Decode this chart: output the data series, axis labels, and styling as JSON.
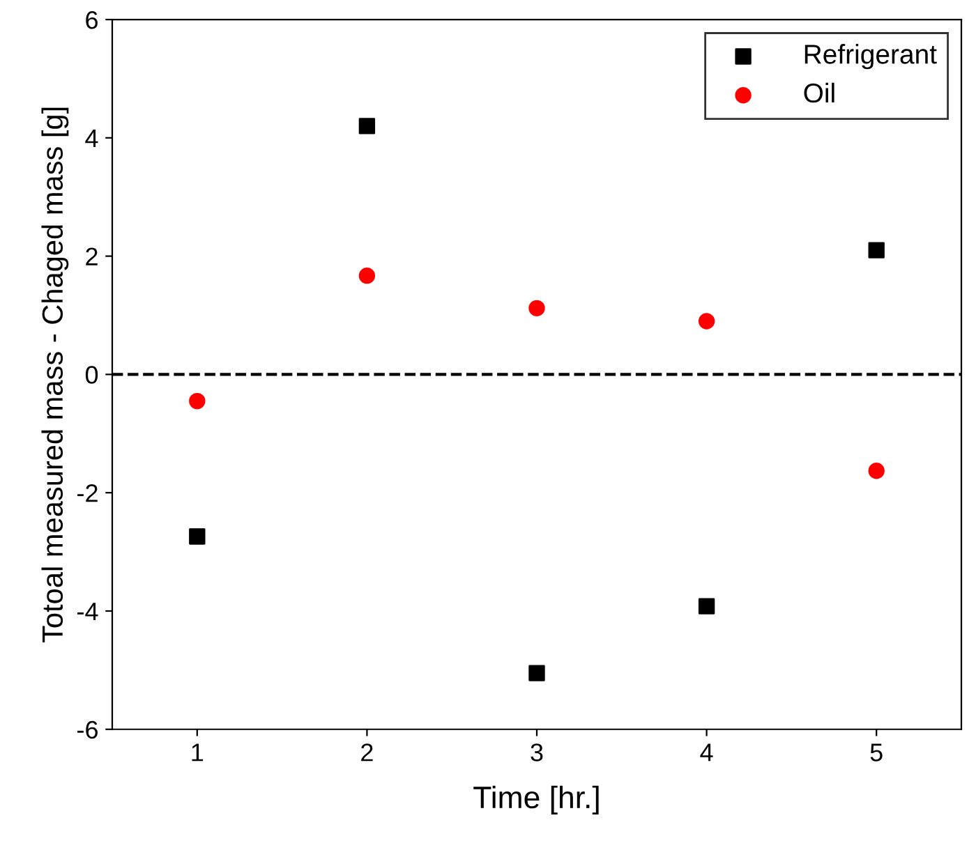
{
  "chart_data": {
    "type": "scatter",
    "xlabel": "Time [hr.]",
    "ylabel": "Totoal measured mass - Chaged mass [g]",
    "x": [
      1,
      2,
      3,
      4,
      5
    ],
    "series": [
      {
        "name": "Refrigerant",
        "color": "#000000",
        "marker": "square",
        "values": [
          -2.74,
          4.2,
          -5.05,
          -3.92,
          2.1
        ]
      },
      {
        "name": "Oil",
        "color": "#ff0000",
        "marker": "circle",
        "values": [
          -0.45,
          1.67,
          1.12,
          0.9,
          -1.63
        ]
      }
    ],
    "xlim": [
      0.5,
      5.5
    ],
    "xticks": [
      1,
      2,
      3,
      4,
      5
    ],
    "ylim": [
      -6,
      6
    ],
    "yticks": [
      -6,
      -4,
      -2,
      0,
      2,
      4,
      6
    ],
    "ref_lines": [
      {
        "axis": "y",
        "value": 0,
        "color": "#000000",
        "line_style": "dashed"
      }
    ],
    "grid": false,
    "legend": "top right"
  }
}
